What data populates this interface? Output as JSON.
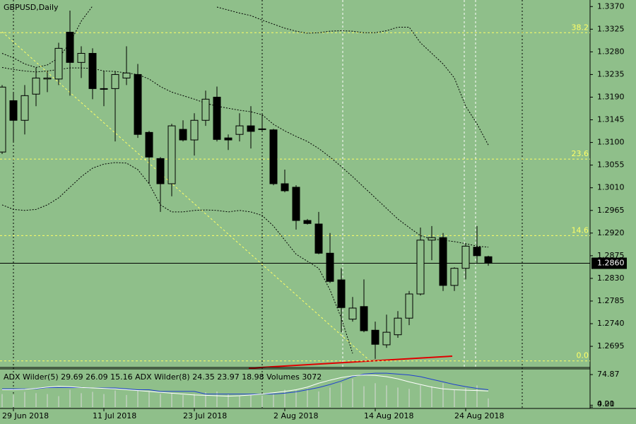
{
  "chart_data": {
    "type": "candlestick",
    "title": "GBPUSD,Daily",
    "categories": [
      null,
      "29 Jun 2018",
      null,
      null,
      null,
      null,
      null,
      null,
      null,
      "11 Jul 2018",
      null,
      null,
      null,
      null,
      null,
      null,
      null,
      "23 Jul 2018",
      null,
      null,
      null,
      null,
      null,
      null,
      null,
      "2 Aug 2018",
      null,
      null,
      null,
      null,
      null,
      null,
      null,
      "14 Aug 2018",
      null,
      null,
      null,
      null,
      null,
      null,
      null,
      "24 Aug 2018",
      null,
      null
    ],
    "open": [
      1.3081,
      1.3183,
      1.3144,
      1.3196,
      1.3226,
      1.3226,
      1.3319,
      1.3259,
      1.3277,
      1.3206,
      1.3207,
      1.3228,
      1.3235,
      1.312,
      1.3068,
      1.3018,
      1.3126,
      1.3105,
      1.3144,
      1.319,
      1.3109,
      1.3116,
      1.3133,
      1.3126,
      1.3125,
      1.3018,
      1.3011,
      1.2945,
      1.2938,
      1.288,
      1.2827,
      1.2749,
      1.2774,
      1.2727,
      1.2698,
      1.2718,
      1.2751,
      1.2799,
      1.2906,
      1.2911,
      1.2816,
      1.285,
      1.2892,
      1.2873
    ],
    "high": [
      1.3214,
      1.32,
      1.3214,
      1.3249,
      1.3242,
      1.3298,
      1.3362,
      1.3291,
      1.3287,
      1.3242,
      1.3242,
      1.3291,
      1.3256,
      1.3123,
      1.3071,
      1.3137,
      1.3144,
      1.3158,
      1.3203,
      1.3211,
      1.3116,
      1.3158,
      1.3172,
      1.3158,
      1.3127,
      1.3046,
      1.3015,
      1.2948,
      1.2962,
      1.292,
      1.285,
      1.2793,
      1.2828,
      1.2744,
      1.2758,
      1.2765,
      1.2805,
      1.2931,
      1.2934,
      1.292,
      1.2852,
      1.2899,
      1.2934,
      1.2875
    ],
    "low": [
      1.3077,
      1.3102,
      1.3116,
      1.3172,
      1.32,
      1.3214,
      1.3193,
      1.3228,
      1.3186,
      1.3172,
      1.3102,
      1.3214,
      1.3109,
      1.3018,
      1.2962,
      1.2993,
      1.3102,
      1.3074,
      1.3133,
      1.3102,
      1.3085,
      1.3102,
      1.3088,
      1.3123,
      1.3015,
      1.3001,
      1.2927,
      1.2937,
      1.2878,
      1.2821,
      1.2723,
      1.2744,
      1.2723,
      1.267,
      1.2692,
      1.2712,
      1.2737,
      1.2796,
      1.2866,
      1.2805,
      1.2805,
      1.2828,
      1.2861,
      1.2855
    ],
    "close": [
      1.321,
      1.3144,
      1.3193,
      1.3228,
      1.3228,
      1.3287,
      1.3259,
      1.3277,
      1.3207,
      1.3207,
      1.3235,
      1.3238,
      1.3116,
      1.3071,
      1.3018,
      1.3133,
      1.3105,
      1.3144,
      1.3186,
      1.3106,
      1.3105,
      1.3133,
      1.3122,
      1.3127,
      1.3018,
      1.3004,
      1.2945,
      1.2939,
      1.288,
      1.2824,
      1.2772,
      1.2771,
      1.2726,
      1.2699,
      1.2723,
      1.2751,
      1.2799,
      1.2906,
      1.2911,
      1.2816,
      1.285,
      1.2894,
      1.2875,
      1.286
    ],
    "up_color": "#8fbf8a",
    "down_color": "#000000",
    "bands": {
      "color": "#000000",
      "upper": [
        1.3277,
        1.3268,
        1.3256,
        1.3249,
        1.3254,
        1.3268,
        1.3298,
        1.3341,
        1.3371,
        null,
        null,
        null,
        null,
        null,
        null,
        null,
        null,
        null,
        null,
        1.3369,
        1.3363,
        1.3357,
        1.3352,
        1.3343,
        1.3335,
        1.3327,
        1.3321,
        1.3317,
        1.3318,
        1.3321,
        1.3322,
        1.3321,
        1.3318,
        1.3318,
        1.3322,
        1.3329,
        1.3329,
        1.3298,
        1.3277,
        1.3256,
        1.3228,
        1.3172,
        1.3137,
        1.3095
      ],
      "middle": [
        1.3249,
        1.3245,
        1.3242,
        1.324,
        1.3242,
        1.3245,
        1.3248,
        1.3248,
        1.3247,
        1.3242,
        1.3241,
        1.3238,
        1.3235,
        1.3226,
        1.3211,
        1.32,
        1.3193,
        1.3186,
        1.3178,
        1.3172,
        1.3168,
        1.3164,
        1.3161,
        1.3155,
        1.3136,
        1.3123,
        1.3112,
        1.3102,
        1.3088,
        1.3071,
        1.3052,
        1.3032,
        1.3011,
        1.299,
        1.2969,
        1.2948,
        1.2931,
        1.2915,
        1.2908,
        1.2906,
        1.2903,
        1.2899,
        1.2894,
        1.2892
      ],
      "lower": [
        1.2976,
        1.2967,
        1.2965,
        1.2967,
        1.2976,
        1.299,
        1.3011,
        1.3032,
        1.3049,
        1.3057,
        1.306,
        1.3059,
        1.3046,
        1.3018,
        1.2976,
        1.2962,
        1.2962,
        1.2965,
        1.2966,
        1.2965,
        1.2962,
        1.2965,
        1.2962,
        1.2955,
        1.2934,
        1.2906,
        1.2878,
        1.2864,
        1.285,
        1.2807,
        1.2751,
        1.2681,
        null,
        null,
        null,
        null,
        null,
        null,
        null,
        null,
        null,
        null,
        null,
        null
      ]
    },
    "fib_color": "#ffff66",
    "fib_levels": [
      {
        "value": 1.3318,
        "label": "38.2"
      },
      {
        "value": 1.3067,
        "label": "23.6"
      },
      {
        "value": 1.2915,
        "label": "14.6"
      },
      {
        "value": 1.2666,
        "label": "0.0"
      }
    ],
    "last_price": {
      "value": 1.286,
      "label": "1.2860"
    },
    "ylim": [
      1.2653,
      1.3383
    ],
    "yticks": [
      {
        "value": 1.337,
        "label": "1.3370"
      },
      {
        "value": 1.3325,
        "label": "1.3325"
      },
      {
        "value": 1.328,
        "label": "1.3280"
      },
      {
        "value": 1.3235,
        "label": "1.3235"
      },
      {
        "value": 1.319,
        "label": "1.3190"
      },
      {
        "value": 1.3145,
        "label": "1.3145"
      },
      {
        "value": 1.31,
        "label": "1.3100"
      },
      {
        "value": 1.3055,
        "label": "1.3055"
      },
      {
        "value": 1.301,
        "label": "1.3010"
      },
      {
        "value": 1.2965,
        "label": "1.2965"
      },
      {
        "value": 1.292,
        "label": "1.2920"
      },
      {
        "value": 1.2875,
        "label": "1.2875"
      },
      {
        "value": 1.283,
        "label": "1.2830"
      },
      {
        "value": 1.2785,
        "label": "1.2785"
      },
      {
        "value": 1.274,
        "label": "1.2740"
      },
      {
        "value": 1.2695,
        "label": "1.2695"
      }
    ],
    "indicator": {
      "legend": "ADX Wilder(5) 29.69 26.09 15.16 ADX Wilder(8) 24.35 23.97 18.98 Volumes 3072",
      "ylim": [
        0,
        88
      ],
      "yticks": [
        74.87,
        4.21,
        {
          "value": 0,
          "label": "0.00"
        }
      ],
      "volumes": {
        "color": "#d8d8d8",
        "values": [
          30,
          28,
          35,
          32,
          30,
          25,
          40,
          32,
          35,
          30,
          38,
          28,
          40,
          35,
          30,
          32,
          28,
          30,
          34,
          36,
          30,
          25,
          28,
          26,
          30,
          40,
          38,
          42,
          36,
          45,
          55,
          65,
          48,
          55,
          50,
          45,
          42,
          50,
          48,
          55,
          40,
          44,
          50,
          20
        ]
      },
      "lines": [
        {
          "color": "#1f3fd0",
          "values": [
            42,
            42,
            42,
            42,
            45,
            45,
            45,
            45,
            44,
            44,
            44,
            42,
            40,
            40,
            36,
            36,
            36,
            36,
            30,
            30,
            30,
            30,
            30,
            30,
            30,
            32,
            35,
            40,
            45,
            52,
            60,
            70,
            76,
            78,
            78,
            76,
            74,
            70,
            64,
            58,
            52,
            47,
            43,
            40
          ]
        },
        {
          "color": "#ffffff",
          "values": [
            40,
            40,
            41,
            43,
            46,
            48,
            47,
            45,
            44,
            43,
            42,
            40,
            38,
            36,
            34,
            32,
            30,
            28,
            27,
            26,
            25,
            26,
            28,
            30,
            33,
            36,
            40,
            46,
            55,
            62,
            68,
            72,
            74,
            73,
            70,
            65,
            58,
            52,
            46,
            42,
            40,
            39,
            38,
            37
          ]
        }
      ]
    }
  }
}
